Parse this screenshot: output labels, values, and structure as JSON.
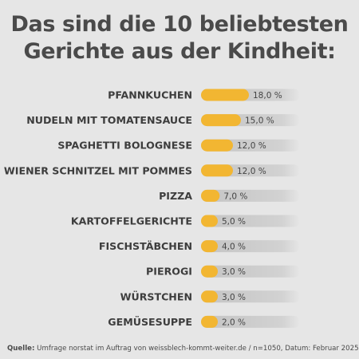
{
  "chart_data": {
    "type": "bar",
    "orientation": "horizontal",
    "title_lines": [
      "Das sind die 10 beliebtesten",
      "Gerichte aus der Kindheit:"
    ],
    "categories": [
      "PFANNKUCHEN",
      "NUDELN MIT TOMATENSAUCE",
      "SPAGHETTI BOLOGNESE",
      "WIENER SCHNITZEL MIT POMMES",
      "PIZZA",
      "KARTOFFELGERICHTE",
      "FISCHSTÄBCHEN",
      "PIEROGI",
      "WÜRSTCHEN",
      "GEMÜSESUPPE"
    ],
    "values": [
      18.0,
      15.0,
      12.0,
      12.0,
      7.0,
      5.0,
      4.0,
      3.0,
      3.0,
      2.0
    ],
    "value_labels": [
      "18,0 %",
      "15,0 %",
      "12,0 %",
      "12,0 %",
      "7,0 %",
      "5,0 %",
      "4,0 %",
      "3,0 %",
      "3,0 %",
      "2,0 %"
    ],
    "bar_color": "#f2b632",
    "track_color": "#c9c9c9",
    "grid": false,
    "legend": "none"
  },
  "source": {
    "label": "Quelle:",
    "text": "Umfrage norstat im Auftrag von weissblech-kommt-weiter.de / n=1050, Datum: Februar 2025"
  }
}
